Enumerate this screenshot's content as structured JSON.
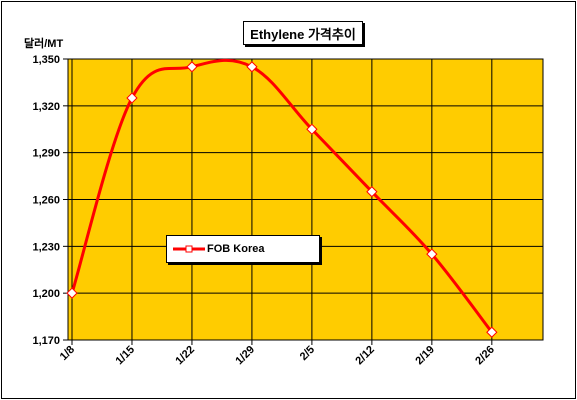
{
  "chart_data": {
    "type": "line",
    "title": "Ethylene 가격추이",
    "ylabel": "달러/MT",
    "xlabel": "",
    "categories": [
      "1/8",
      "1/15",
      "1/22",
      "1/29",
      "2/5",
      "2/12",
      "2/19",
      "2/26"
    ],
    "series": [
      {
        "name": "FOB Korea",
        "values": [
          1200,
          1325,
          1345,
          1345,
          1305,
          1265,
          1225,
          1175
        ]
      }
    ],
    "ylim": [
      1170,
      1350
    ],
    "yticks": [
      1170,
      1200,
      1230,
      1260,
      1290,
      1320,
      1350
    ],
    "ytick_labels": [
      "1,170",
      "1,200",
      "1,230",
      "1,260",
      "1,290",
      "1,320",
      "1,350"
    ],
    "grid": true,
    "legend_position": "center-left",
    "colors": {
      "plot_bg": "#FFCC00",
      "line": "#FF0000",
      "marker_fill": "#FFFFFF",
      "grid": "#000000"
    }
  }
}
